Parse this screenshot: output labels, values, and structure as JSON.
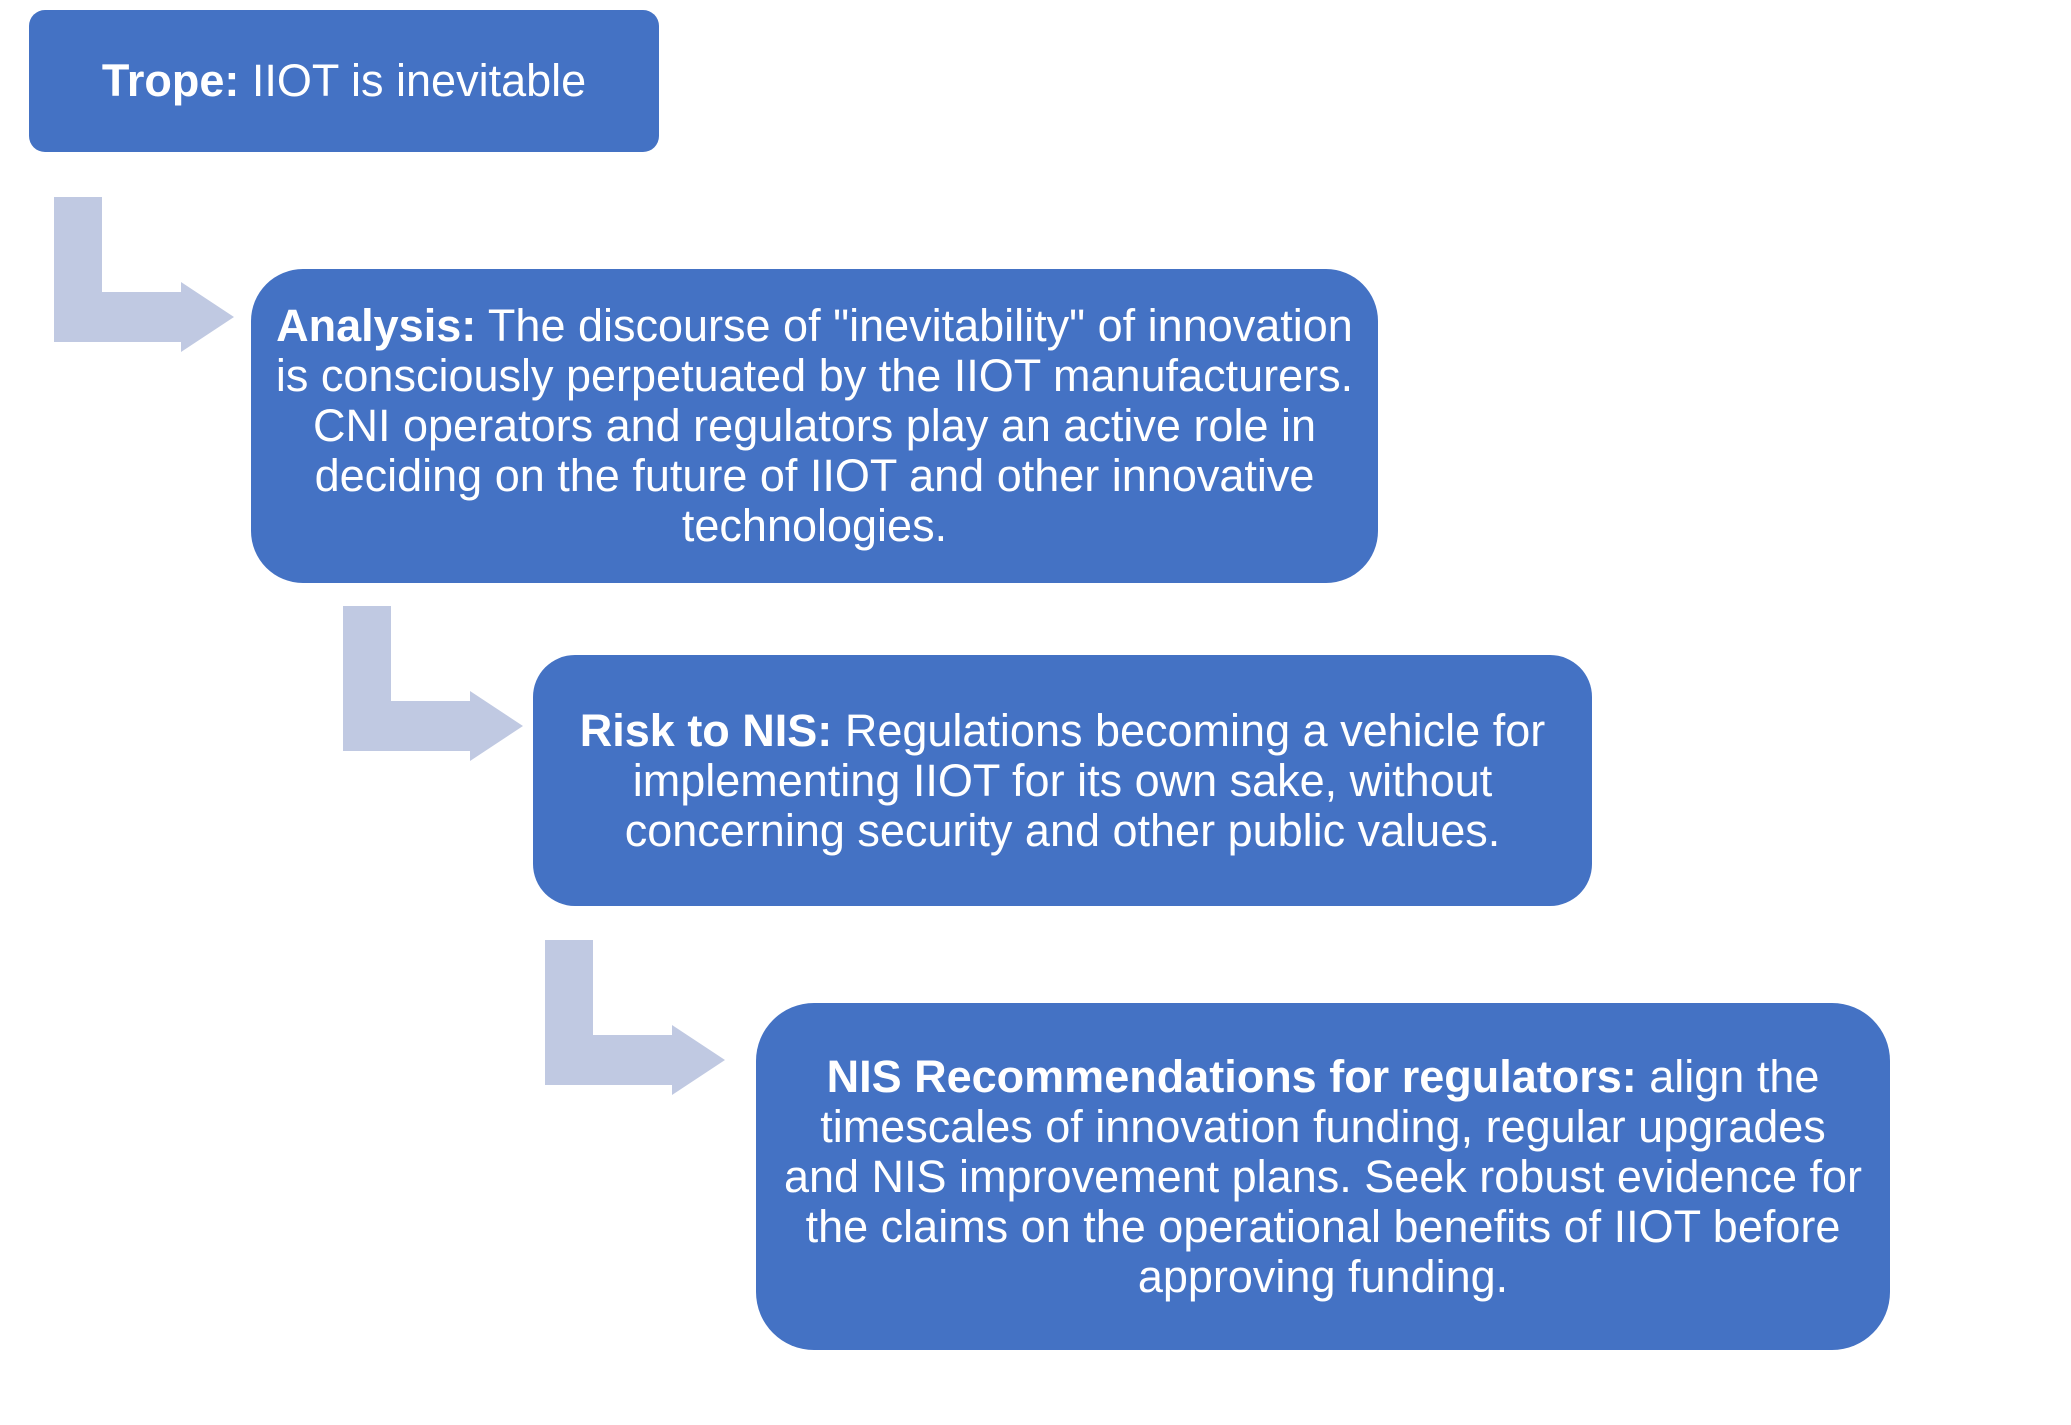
{
  "colors": {
    "box_fill": "#4472c4",
    "box_text": "#ffffff",
    "arrow_fill": "#c0c9e2",
    "background": "#ffffff"
  },
  "steps": [
    {
      "heading": "Trope:",
      "text": " IIOT is inevitable"
    },
    {
      "heading": "Analysis:",
      "text": " The discourse of \"inevitability\" of innovation is consciously perpetuated by the IIOT manufacturers. CNI operators and regulators play an active role in deciding on the future of IIOT and other innovative technologies."
    },
    {
      "heading": "Risk to NIS:",
      "text": " Regulations becoming a vehicle for implementing IIOT for its own sake, without concerning security and other public values."
    },
    {
      "heading": "NIS Recommendations for regulators:",
      "text": " align the timescales of innovation funding, regular upgrades and NIS improvement plans. Seek robust evidence for the  claims on the operational benefits of IIOT before approving funding."
    }
  ],
  "connectors": [
    {
      "icon": "bent-arrow-icon",
      "from": 0,
      "to": 1
    },
    {
      "icon": "bent-arrow-icon",
      "from": 1,
      "to": 2
    },
    {
      "icon": "bent-arrow-icon",
      "from": 2,
      "to": 3
    }
  ]
}
